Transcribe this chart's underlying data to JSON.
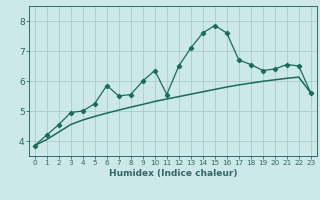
{
  "x": [
    0,
    1,
    2,
    3,
    4,
    5,
    6,
    7,
    8,
    9,
    10,
    11,
    12,
    13,
    14,
    15,
    16,
    17,
    18,
    19,
    20,
    21,
    22,
    23
  ],
  "y_line": [
    3.85,
    4.2,
    4.55,
    4.95,
    5.0,
    5.25,
    5.85,
    5.5,
    5.55,
    6.0,
    6.35,
    5.55,
    6.5,
    7.1,
    7.6,
    7.85,
    7.6,
    6.7,
    6.55,
    6.35,
    6.4,
    6.55,
    6.5,
    5.6
  ],
  "y_smooth": [
    3.85,
    4.05,
    4.3,
    4.55,
    4.7,
    4.82,
    4.93,
    5.03,
    5.13,
    5.22,
    5.32,
    5.4,
    5.48,
    5.56,
    5.64,
    5.72,
    5.8,
    5.87,
    5.93,
    5.99,
    6.04,
    6.09,
    6.13,
    5.6
  ],
  "line_color": "#1a6b5a",
  "bg_color": "#cce8e8",
  "grid_color": "#aacccc",
  "axis_color": "#336666",
  "xlabel": "Humidex (Indice chaleur)",
  "ylim": [
    3.5,
    8.5
  ],
  "xlim": [
    -0.5,
    23.5
  ],
  "yticks": [
    4,
    5,
    6,
    7,
    8
  ],
  "xticks": [
    0,
    1,
    2,
    3,
    4,
    5,
    6,
    7,
    8,
    9,
    10,
    11,
    12,
    13,
    14,
    15,
    16,
    17,
    18,
    19,
    20,
    21,
    22,
    23
  ]
}
